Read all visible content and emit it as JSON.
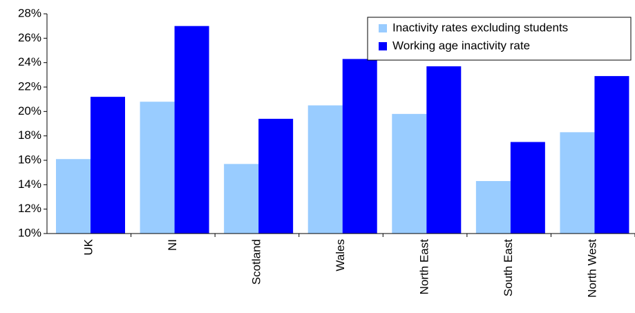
{
  "chart_data": {
    "type": "bar",
    "categories": [
      "UK",
      "NI",
      "Scotland",
      "Wales",
      "North East",
      "South East",
      "North West"
    ],
    "series": [
      {
        "name": "Inactivity rates excluding students",
        "color": "#99ccff",
        "values": [
          16.1,
          20.8,
          15.7,
          20.5,
          19.8,
          14.3,
          18.3
        ]
      },
      {
        "name": "Working age inactivity rate",
        "color": "#0000ff",
        "values": [
          21.2,
          27.0,
          19.4,
          24.3,
          23.7,
          17.5,
          22.9
        ]
      }
    ],
    "ylim": [
      10,
      28
    ],
    "yticks": [
      {
        "value": 10,
        "label": "10%"
      },
      {
        "value": 12,
        "label": "12%"
      },
      {
        "value": 14,
        "label": "14%"
      },
      {
        "value": 16,
        "label": "16%"
      },
      {
        "value": 18,
        "label": "18%"
      },
      {
        "value": 20,
        "label": "20%"
      },
      {
        "value": 22,
        "label": "22%"
      },
      {
        "value": 24,
        "label": "24%"
      },
      {
        "value": 26,
        "label": "26%"
      },
      {
        "value": 28,
        "label": "28%"
      }
    ],
    "grid": false,
    "legend": "top-right"
  }
}
